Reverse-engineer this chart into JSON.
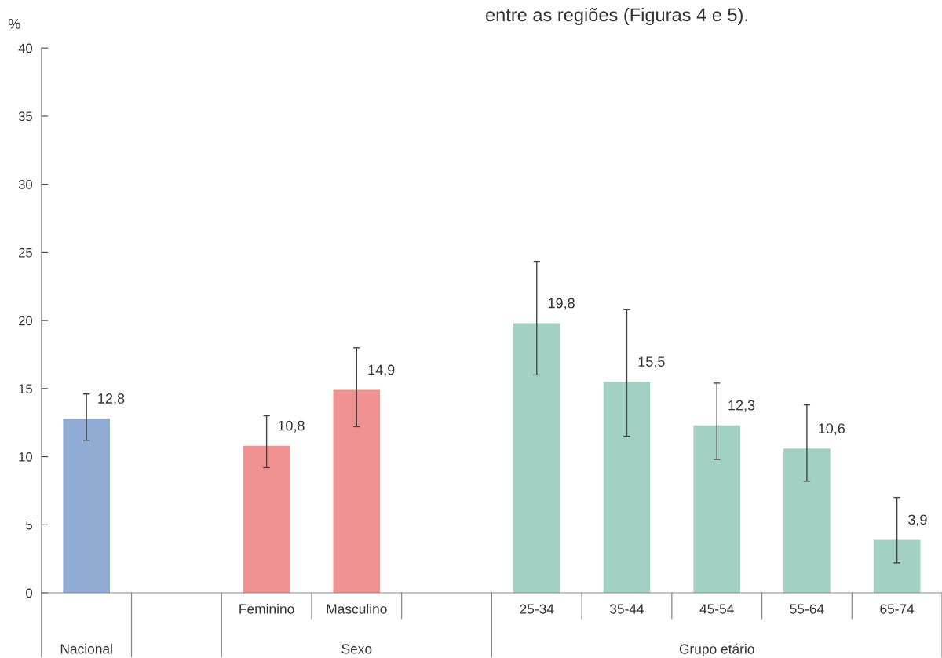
{
  "chart_data": {
    "type": "bar",
    "ylabel": "%",
    "categories": [
      null,
      null,
      "Feminino",
      "Masculino",
      null,
      "25-34",
      "35-44",
      "45-54",
      "55-64",
      "65-74"
    ],
    "values": [
      12.8,
      null,
      10.8,
      14.9,
      null,
      19.8,
      15.5,
      12.3,
      10.6,
      3.9
    ],
    "colors": [
      "#91acd4",
      "#91acd4",
      "#ef9191",
      "#ef9191",
      "#a2d0c5",
      "#a2d0c5",
      "#a2d0c5",
      "#a2d0c5",
      "#a2d0c5",
      "#a2d0c5"
    ],
    "errors": [
      [
        11.2,
        14.6
      ],
      null,
      [
        9.2,
        13.0
      ],
      [
        12.2,
        18.0
      ],
      null,
      [
        16.0,
        24.3
      ],
      [
        11.5,
        20.8
      ],
      [
        9.8,
        15.4
      ],
      [
        8.2,
        13.8
      ],
      [
        2.2,
        7.0
      ]
    ],
    "value_labels": [
      "12,8",
      null,
      "10,8",
      "14,9",
      null,
      "19,8",
      "15,5",
      "12,3",
      "10,6",
      "3,9"
    ],
    "ylim": [
      0,
      40
    ],
    "yticks": [
      0,
      5,
      10,
      15,
      20,
      25,
      30,
      35,
      40
    ],
    "grid": false,
    "annotations": [
      "entre as regiões (Figuras 4 e 5).",
      "Nacional",
      "Sexo",
      "Grupo etário"
    ]
  }
}
